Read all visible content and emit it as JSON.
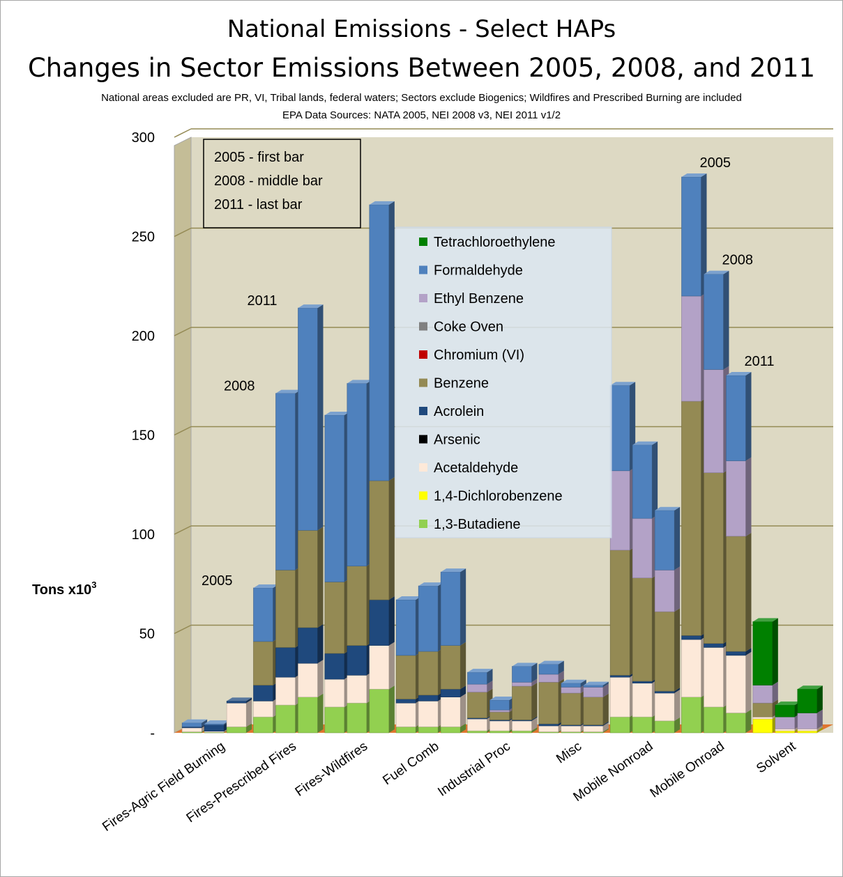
{
  "chart_data": {
    "type": "bar",
    "stacked": true,
    "title": "National Emissions - Select HAPs",
    "subtitle": "Changes in Sector Emissions Between 2005, 2008, and 2011",
    "notes": [
      "National areas excluded are PR, VI, Tribal lands, federal waters; Sectors exclude Biogenics; Wildfires and Prescribed Burning are included",
      "EPA Data Sources: NATA 2005, NEI 2008 v3, NEI 2011 v1/2"
    ],
    "ylabel": "Tons x10",
    "ylabel_sup": "3",
    "ylim": [
      0,
      300
    ],
    "yticks": [
      "-",
      "50",
      "100",
      "150",
      "200",
      "250",
      "300"
    ],
    "ytick_values": [
      0,
      50,
      100,
      150,
      200,
      250,
      300
    ],
    "grid": true,
    "legend_position": "center",
    "year_box": [
      "2005 - first bar",
      "2008 - middle bar",
      "2011 - last bar"
    ],
    "categories": [
      "Fires-Agric Field Burning",
      "Fires-Prescribed Fires",
      "Fires-Wildfires",
      "Fuel Comb",
      "Industrial Proc",
      "Misc",
      "Mobile Nonroad",
      "Mobile Onroad",
      "Solvent"
    ],
    "years": [
      "2005",
      "2008",
      "2011"
    ],
    "series": [
      {
        "name": "1,3-Butadiene",
        "color": "#92d050",
        "values": [
          [
            0.5,
            0.3,
            3
          ],
          [
            8,
            14,
            18
          ],
          [
            13,
            15,
            22
          ],
          [
            3,
            3,
            3
          ],
          [
            1,
            1,
            1
          ],
          [
            0.5,
            0.5,
            0.5
          ],
          [
            8,
            8,
            6
          ],
          [
            18,
            13,
            10
          ],
          [
            0,
            0,
            0
          ]
        ]
      },
      {
        "name": "1,4-Dichlorobenzene",
        "color": "#ffff00",
        "values": [
          [
            0,
            0,
            0
          ],
          [
            0,
            0,
            0
          ],
          [
            0,
            0,
            0
          ],
          [
            0,
            0,
            0
          ],
          [
            0,
            0,
            0
          ],
          [
            0,
            0,
            0
          ],
          [
            0,
            0,
            0
          ],
          [
            0,
            0,
            0
          ],
          [
            7,
            1,
            1
          ]
        ]
      },
      {
        "name": "Acetaldehyde",
        "color": "#fde9d9",
        "values": [
          [
            2,
            0.5,
            12
          ],
          [
            8,
            14,
            17
          ],
          [
            14,
            14,
            22
          ],
          [
            12,
            13,
            15
          ],
          [
            6,
            5,
            5
          ],
          [
            3,
            3,
            3
          ],
          [
            20,
            17,
            14
          ],
          [
            29,
            30,
            29
          ],
          [
            1,
            1,
            1
          ]
        ]
      },
      {
        "name": "Arsenic",
        "color": "#000000",
        "values": [
          [
            0,
            0,
            0
          ],
          [
            0,
            0,
            0
          ],
          [
            0,
            0,
            0
          ],
          [
            0,
            0,
            0
          ],
          [
            0,
            0,
            0
          ],
          [
            0,
            0,
            0
          ],
          [
            0,
            0,
            0
          ],
          [
            0,
            0,
            0
          ],
          [
            0,
            0,
            0
          ]
        ]
      },
      {
        "name": "Acrolein",
        "color": "#1f497d",
        "values": [
          [
            0.5,
            3.2,
            1
          ],
          [
            8,
            15,
            18
          ],
          [
            13,
            15,
            23
          ],
          [
            2,
            3,
            4
          ],
          [
            0.5,
            0.5,
            0.5
          ],
          [
            1,
            0.5,
            0.5
          ],
          [
            1,
            1,
            1
          ],
          [
            2,
            2,
            2
          ],
          [
            0,
            0,
            0
          ]
        ]
      },
      {
        "name": "Benzene",
        "color": "#948a54",
        "values": [
          [
            0,
            0,
            0
          ],
          [
            22,
            39,
            49
          ],
          [
            36,
            40,
            60
          ],
          [
            22,
            22,
            22
          ],
          [
            13,
            4,
            17
          ],
          [
            21,
            16,
            14
          ],
          [
            63,
            52,
            40
          ],
          [
            118,
            86,
            58
          ],
          [
            7,
            0,
            0
          ]
        ]
      },
      {
        "name": "Chromium (VI)",
        "color": "#c00000",
        "values": [
          [
            0,
            0,
            0
          ],
          [
            0,
            0,
            0
          ],
          [
            0,
            0,
            0
          ],
          [
            0,
            0,
            0
          ],
          [
            0,
            0,
            0
          ],
          [
            0,
            0,
            0
          ],
          [
            0,
            0,
            0
          ],
          [
            0,
            0,
            0
          ],
          [
            0,
            0,
            0
          ]
        ]
      },
      {
        "name": "Coke Oven",
        "color": "#808080",
        "values": [
          [
            0,
            0,
            0
          ],
          [
            0,
            0,
            0
          ],
          [
            0,
            0,
            0
          ],
          [
            0,
            0,
            0
          ],
          [
            0,
            0,
            0
          ],
          [
            0,
            0,
            0
          ],
          [
            0,
            0,
            0
          ],
          [
            0,
            0,
            0
          ],
          [
            0,
            0,
            0
          ]
        ]
      },
      {
        "name": "Ethyl Benzene",
        "color": "#b3a2c7",
        "values": [
          [
            0,
            0,
            0
          ],
          [
            0,
            0,
            0
          ],
          [
            0,
            0,
            0
          ],
          [
            0,
            0,
            0
          ],
          [
            4,
            1,
            2
          ],
          [
            4,
            3,
            5
          ],
          [
            40,
            30,
            21
          ],
          [
            53,
            52,
            38
          ],
          [
            9,
            6,
            8
          ]
        ]
      },
      {
        "name": "Formaldehyde",
        "color": "#4f81bd",
        "values": [
          [
            2,
            0.5,
            0
          ],
          [
            27,
            89,
            112
          ],
          [
            84,
            92,
            139
          ],
          [
            28,
            33,
            37
          ],
          [
            6,
            5,
            8
          ],
          [
            5,
            2,
            1
          ],
          [
            43,
            37,
            30
          ],
          [
            60,
            48,
            43
          ],
          [
            0,
            0,
            0
          ]
        ]
      },
      {
        "name": "Tetrachloroethylene",
        "color": "#008000",
        "values": [
          [
            0,
            0,
            0
          ],
          [
            0,
            0,
            0
          ],
          [
            0,
            0,
            0
          ],
          [
            0,
            0,
            0
          ],
          [
            0,
            0,
            0
          ],
          [
            0,
            0,
            0
          ],
          [
            0,
            0,
            0
          ],
          [
            0,
            0,
            0
          ],
          [
            32,
            6,
            12
          ]
        ]
      }
    ],
    "annotations": [
      {
        "text": "2005",
        "category": "Fires-Prescribed Fires",
        "year": "2005"
      },
      {
        "text": "2008",
        "category": "Fires-Prescribed Fires",
        "year": "2008"
      },
      {
        "text": "2011",
        "category": "Fires-Prescribed Fires",
        "year": "2011"
      },
      {
        "text": "2005",
        "category": "Mobile Onroad",
        "year": "2005"
      },
      {
        "text": "2008",
        "category": "Mobile Onroad",
        "year": "2008"
      },
      {
        "text": "2011",
        "category": "Mobile Onroad",
        "year": "2011"
      }
    ]
  }
}
